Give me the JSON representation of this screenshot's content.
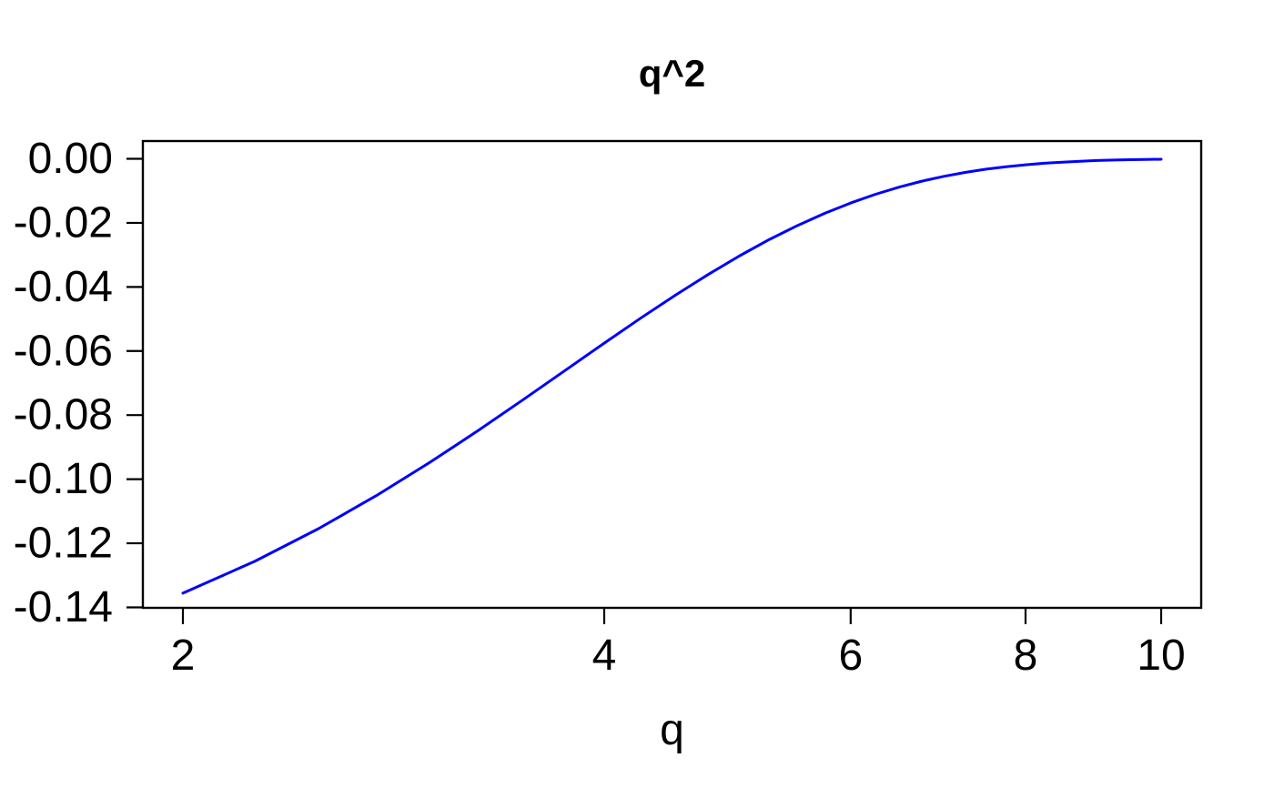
{
  "title": "q^2",
  "xlabel": "q",
  "colors": {
    "curve": "#0000ff",
    "axis": "#000000",
    "text": "#000000",
    "background": "#ffffff"
  },
  "chart_data": {
    "type": "line",
    "title": "q^2",
    "xlabel": "q",
    "ylabel": "",
    "x_scale": "log10",
    "grid": false,
    "legend": false,
    "xlim": [
      2,
      10
    ],
    "ylim": [
      -0.141,
      0.006
    ],
    "x_ticks": [
      {
        "v": 2,
        "label": "2"
      },
      {
        "v": 4,
        "label": "4"
      },
      {
        "v": 6,
        "label": "6"
      },
      {
        "v": 8,
        "label": "8"
      },
      {
        "v": 10,
        "label": "10"
      }
    ],
    "y_ticks": [
      {
        "v": 0.0,
        "label": "0.00"
      },
      {
        "v": -0.02,
        "label": "-0.02"
      },
      {
        "v": -0.04,
        "label": "-0.04"
      },
      {
        "v": -0.06,
        "label": "-0.06"
      },
      {
        "v": -0.08,
        "label": "-0.08"
      },
      {
        "v": -0.1,
        "label": "-0.10"
      },
      {
        "v": -0.12,
        "label": "-0.12"
      },
      {
        "v": -0.14,
        "label": "-0.14"
      }
    ],
    "series": [
      {
        "name": "q^2",
        "color": "#0000ff",
        "x": [
          2,
          2.25,
          2.5,
          2.75,
          3,
          3.25,
          3.5,
          3.75,
          4,
          4.25,
          4.5,
          4.75,
          5,
          5.25,
          5.5,
          5.75,
          6,
          6.25,
          6.5,
          6.75,
          7,
          7.25,
          7.5,
          7.75,
          8,
          8.25,
          8.5,
          8.75,
          9,
          9.25,
          9.5,
          9.75,
          10
        ],
        "y": [
          -0.13557,
          -0.12566,
          -0.11544,
          -0.10511,
          -0.09485,
          -0.08484,
          -0.0752,
          -0.06607,
          -0.05753,
          -0.04965,
          -0.04247,
          -0.036,
          -0.03025,
          -0.02517,
          -0.02079,
          -0.017,
          -0.01379,
          -0.01108,
          -0.00882,
          -0.00696,
          -0.00545,
          -0.00422,
          -0.00325,
          -0.00247,
          -0.00187,
          -0.0014,
          -0.00104,
          -0.00076,
          -0.00055,
          -0.0004,
          -0.00029,
          -0.0002,
          -0.00014
        ]
      }
    ]
  }
}
